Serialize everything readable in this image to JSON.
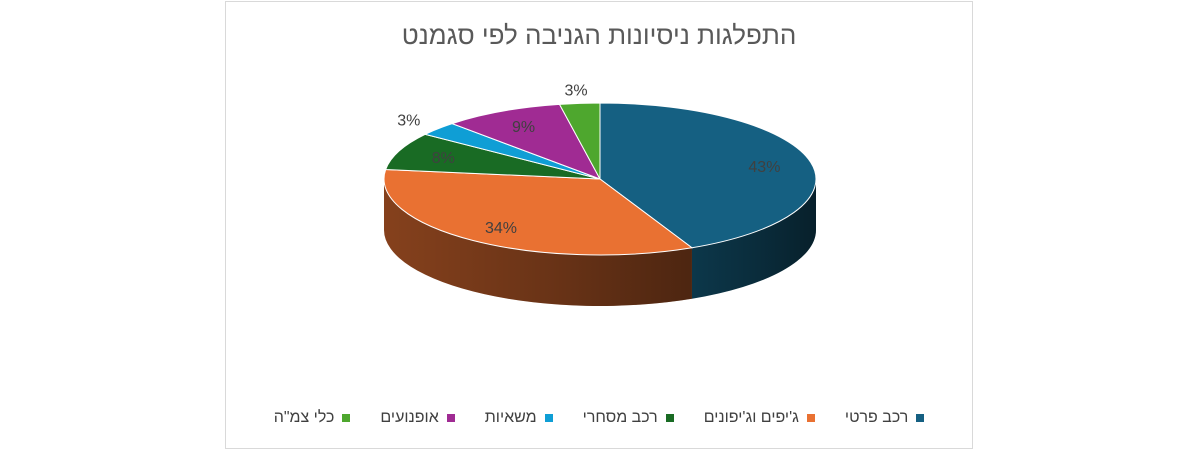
{
  "chart_data": {
    "type": "pie",
    "title": "התפלגות ניסיונות הגניבה לפי סגמנט",
    "labels": [
      "רכב פרטי",
      "ג'יפים וג'יפונים",
      "רכב מסחרי",
      "משאיות",
      "אופנועים",
      "כלי צמ\"ה"
    ],
    "values": [
      43,
      34,
      8,
      3,
      9,
      3
    ],
    "data_labels": [
      "43%",
      "34%",
      "8%",
      "3%",
      "9%",
      "3%"
    ],
    "colors": [
      "#156082",
      "#e97132",
      "#196b24",
      "#0f9ed5",
      "#a02b93",
      "#4ea72e"
    ],
    "legend_position": "bottom",
    "style": "3d-pie"
  }
}
